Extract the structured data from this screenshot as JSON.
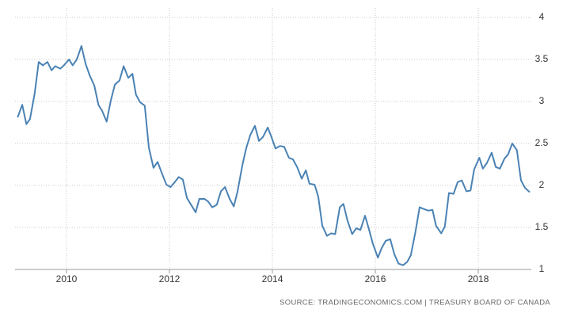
{
  "chart_data": {
    "type": "line",
    "source": "SOURCE: TRADINGECONOMICS.COM | TREASURY BOARD OF CANADA",
    "x": [
      2009.05,
      2009.14,
      2009.22,
      2009.29,
      2009.38,
      2009.46,
      2009.54,
      2009.63,
      2009.71,
      2009.78,
      2009.88,
      2009.95,
      2010.05,
      2010.12,
      2010.2,
      2010.29,
      2010.37,
      2010.45,
      2010.54,
      2010.62,
      2010.69,
      2010.78,
      2010.86,
      2010.94,
      2011.03,
      2011.11,
      2011.2,
      2011.28,
      2011.35,
      2011.43,
      2011.52,
      2011.6,
      2011.69,
      2011.77,
      2011.85,
      2011.94,
      2012.02,
      2012.09,
      2012.18,
      2012.26,
      2012.34,
      2012.43,
      2012.51,
      2012.58,
      2012.68,
      2012.75,
      2012.83,
      2012.92,
      2013.0,
      2013.08,
      2013.17,
      2013.25,
      2013.32,
      2013.42,
      2013.49,
      2013.57,
      2013.66,
      2013.74,
      2013.82,
      2013.91,
      2013.98,
      2014.06,
      2014.15,
      2014.23,
      2014.32,
      2014.4,
      2014.48,
      2014.57,
      2014.65,
      2014.72,
      2014.82,
      2014.89,
      2014.97,
      2015.06,
      2015.14,
      2015.22,
      2015.31,
      2015.38,
      2015.46,
      2015.55,
      2015.63,
      2015.71,
      2015.8,
      2015.88,
      2015.95,
      2016.05,
      2016.12,
      2016.2,
      2016.29,
      2016.37,
      2016.45,
      2016.54,
      2016.62,
      2016.69,
      2016.78,
      2016.86,
      2016.94,
      2017.03,
      2017.11,
      2017.18,
      2017.28,
      2017.35,
      2017.43,
      2017.52,
      2017.6,
      2017.68,
      2017.77,
      2017.85,
      2017.92,
      2018.02,
      2018.09,
      2018.17,
      2018.26,
      2018.34,
      2018.42,
      2018.51,
      2018.58,
      2018.66,
      2018.75,
      2018.83,
      2018.91,
      2019.0
    ],
    "series": [
      {
        "color": "#4a82b4",
        "values": [
          2.81,
          2.96,
          2.73,
          2.79,
          3.09,
          3.47,
          3.43,
          3.47,
          3.37,
          3.42,
          3.39,
          3.43,
          3.5,
          3.43,
          3.5,
          3.66,
          3.45,
          3.31,
          3.19,
          2.96,
          2.89,
          2.76,
          3.01,
          3.2,
          3.25,
          3.42,
          3.28,
          3.33,
          3.08,
          2.99,
          2.95,
          2.45,
          2.21,
          2.28,
          2.15,
          2.01,
          1.98,
          2.03,
          2.1,
          2.07,
          1.85,
          1.76,
          1.68,
          1.84,
          1.84,
          1.81,
          1.74,
          1.77,
          1.93,
          1.98,
          1.84,
          1.75,
          1.92,
          2.25,
          2.44,
          2.6,
          2.71,
          2.53,
          2.58,
          2.69,
          2.58,
          2.44,
          2.47,
          2.46,
          2.33,
          2.31,
          2.22,
          2.08,
          2.18,
          2.02,
          2.01,
          1.87,
          1.52,
          1.4,
          1.43,
          1.42,
          1.74,
          1.78,
          1.58,
          1.42,
          1.49,
          1.47,
          1.64,
          1.47,
          1.31,
          1.14,
          1.25,
          1.34,
          1.36,
          1.18,
          1.07,
          1.05,
          1.09,
          1.17,
          1.45,
          1.74,
          1.72,
          1.7,
          1.71,
          1.52,
          1.43,
          1.51,
          1.91,
          1.9,
          2.04,
          2.06,
          1.93,
          1.94,
          2.19,
          2.33,
          2.2,
          2.27,
          2.39,
          2.22,
          2.2,
          2.32,
          2.37,
          2.5,
          2.42,
          2.06,
          1.97,
          1.92
        ]
      }
    ],
    "xlim": [
      2009,
      2019.03
    ],
    "xticks": [
      2010,
      2012,
      2014,
      2016,
      2018
    ],
    "ylim": [
      1,
      4
    ],
    "yticks": [
      1,
      1.5,
      2,
      2.5,
      3,
      3.5,
      4
    ],
    "grid": true
  }
}
